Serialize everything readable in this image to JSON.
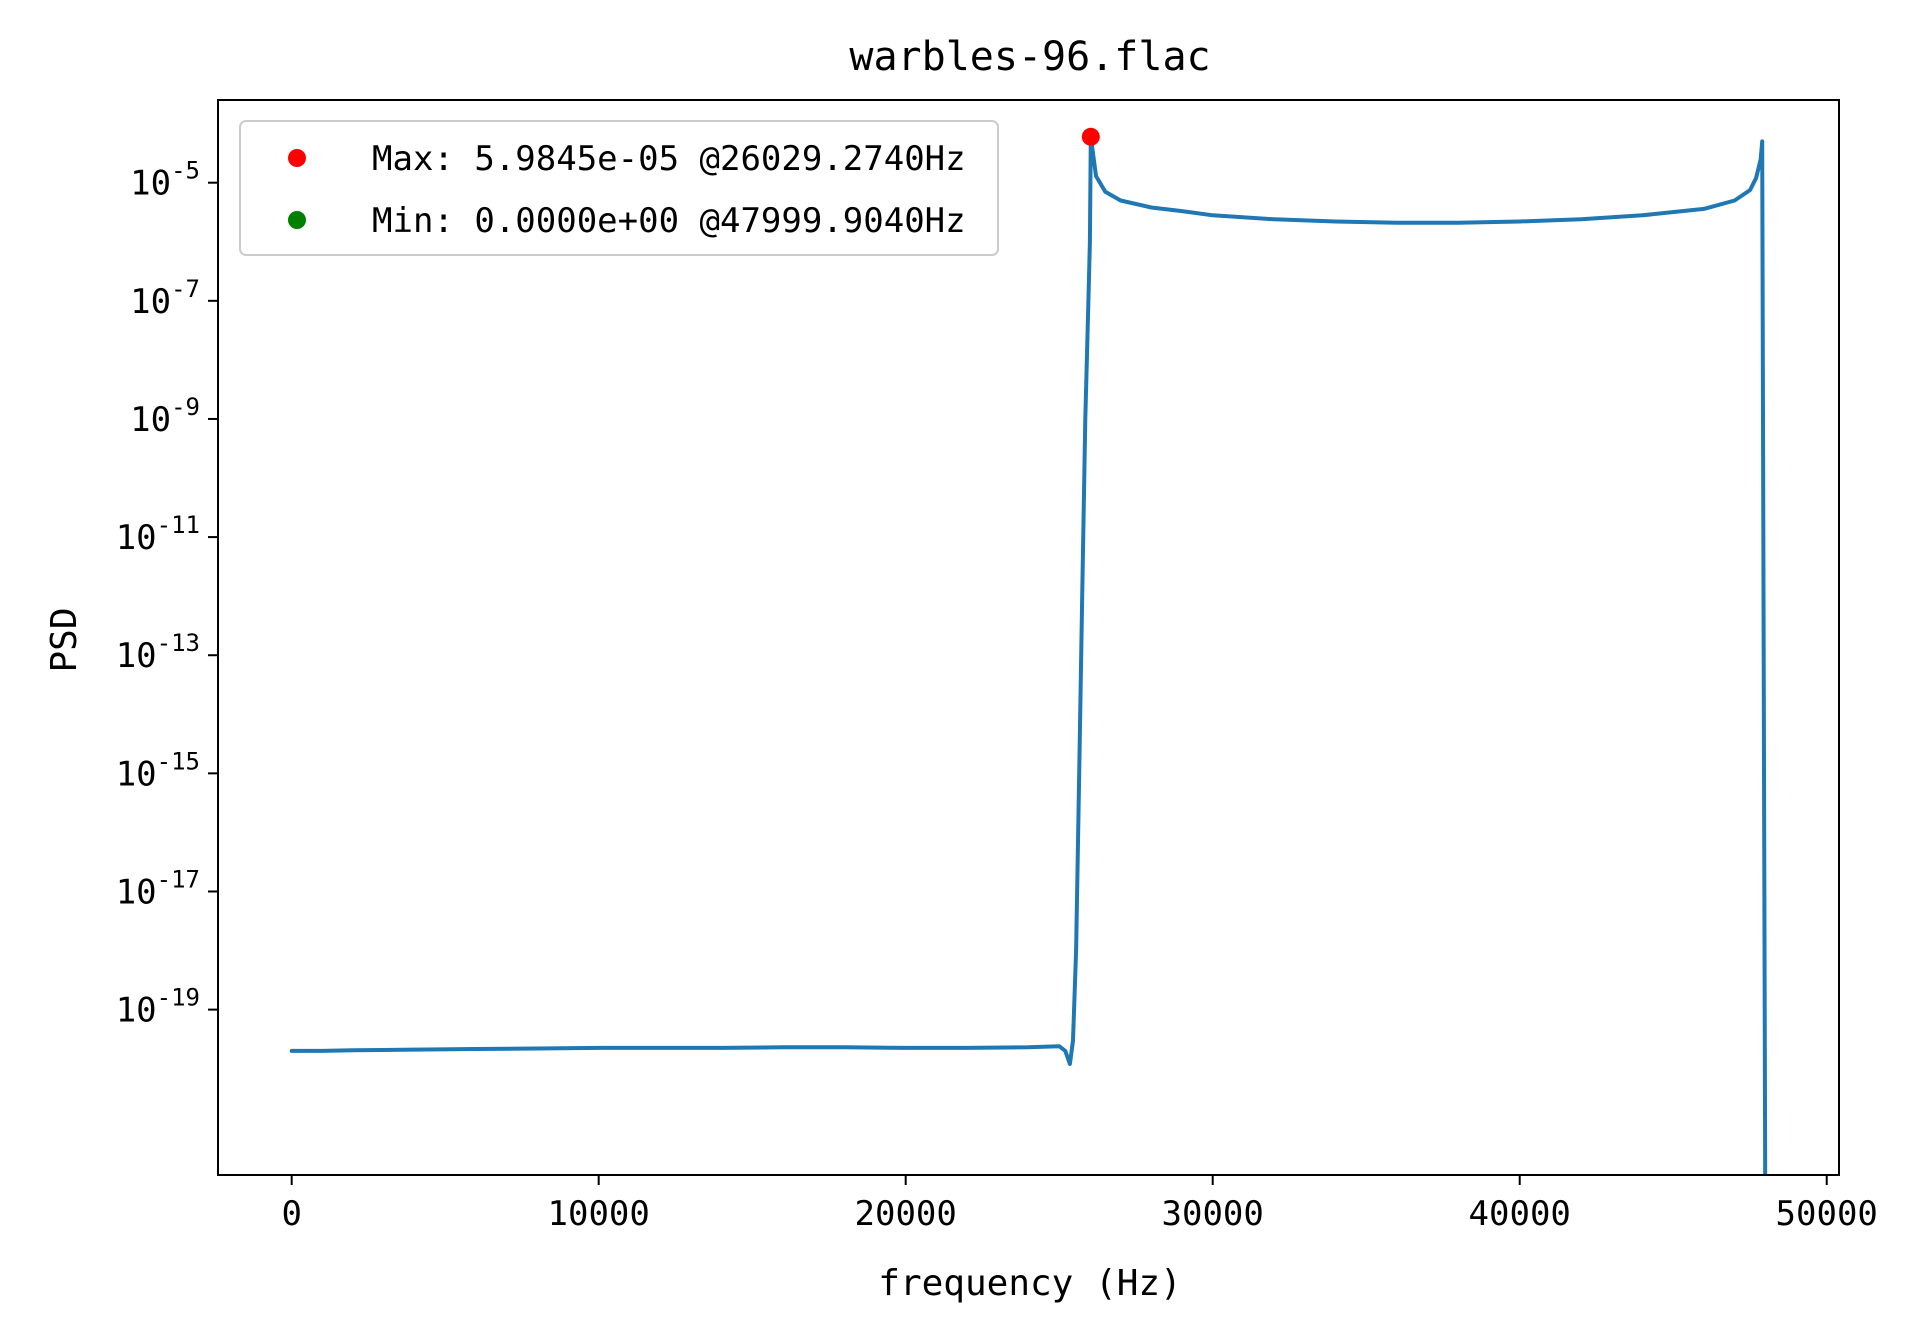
{
  "chart_data": {
    "type": "line",
    "title": "warbles-96.flac",
    "xlabel": "frequency (Hz)",
    "ylabel": "PSD",
    "xlim": [
      -2400,
      50400
    ],
    "ylim_log10": [
      -21.8,
      -3.6
    ],
    "yscale": "log",
    "grid": false,
    "legend_position": "top-left",
    "x_ticks": [
      0,
      10000,
      20000,
      30000,
      40000,
      50000
    ],
    "x_tick_labels": [
      "0",
      "10000",
      "20000",
      "30000",
      "40000",
      "50000"
    ],
    "y_ticks_log10": [
      -5,
      -7,
      -9,
      -11,
      -13,
      -15,
      -17,
      -19
    ],
    "y_tick_labels": [
      {
        "base": "10",
        "exp": "-5"
      },
      {
        "base": "10",
        "exp": "-7"
      },
      {
        "base": "10",
        "exp": "-9"
      },
      {
        "base": "10",
        "exp": "-11"
      },
      {
        "base": "10",
        "exp": "-13"
      },
      {
        "base": "10",
        "exp": "-15"
      },
      {
        "base": "10",
        "exp": "-17"
      },
      {
        "base": "10",
        "exp": "-19"
      }
    ],
    "series": [
      {
        "color": "#1f77b4",
        "points": [
          [
            0,
            2e-20
          ],
          [
            1000,
            2e-20
          ],
          [
            2000,
            2.05e-20
          ],
          [
            4000,
            2.1e-20
          ],
          [
            6000,
            2.15e-20
          ],
          [
            8000,
            2.2e-20
          ],
          [
            10000,
            2.25e-20
          ],
          [
            12000,
            2.25e-20
          ],
          [
            14000,
            2.25e-20
          ],
          [
            16000,
            2.3e-20
          ],
          [
            18000,
            2.3e-20
          ],
          [
            20000,
            2.25e-20
          ],
          [
            22000,
            2.25e-20
          ],
          [
            24000,
            2.3e-20
          ],
          [
            25000,
            2.4e-20
          ],
          [
            25200,
            2e-20
          ],
          [
            25350,
            1.2e-20
          ],
          [
            25450,
            3e-20
          ],
          [
            25550,
            1e-18
          ],
          [
            25650,
            1e-15
          ],
          [
            25750,
            1e-12
          ],
          [
            25850,
            1e-09
          ],
          [
            25950,
            1e-07
          ],
          [
            26000,
            1e-06
          ],
          [
            26029.274,
            5.9845e-05
          ],
          [
            26200,
            1.3e-05
          ],
          [
            26500,
            7e-06
          ],
          [
            27000,
            5e-06
          ],
          [
            28000,
            3.8e-06
          ],
          [
            29000,
            3.3e-06
          ],
          [
            30000,
            2.8e-06
          ],
          [
            32000,
            2.4e-06
          ],
          [
            34000,
            2.2e-06
          ],
          [
            36000,
            2.1e-06
          ],
          [
            38000,
            2.1e-06
          ],
          [
            40000,
            2.2e-06
          ],
          [
            42000,
            2.4e-06
          ],
          [
            44000,
            2.8e-06
          ],
          [
            46000,
            3.6e-06
          ],
          [
            47000,
            5e-06
          ],
          [
            47500,
            7.5e-06
          ],
          [
            47700,
            1.2e-05
          ],
          [
            47850,
            2.5e-05
          ],
          [
            47900,
            5e-05
          ],
          [
            47999.904,
            0
          ]
        ]
      }
    ],
    "markers": [
      {
        "label": "Max: 5.9845e-05 @26029.2740Hz",
        "x": 26029.274,
        "y": 5.9845e-05,
        "color": "#ff0000"
      },
      {
        "label": "Min: 0.0000e+00 @47999.9040Hz",
        "x": 47999.904,
        "y": 0,
        "color": "#008000"
      }
    ]
  }
}
